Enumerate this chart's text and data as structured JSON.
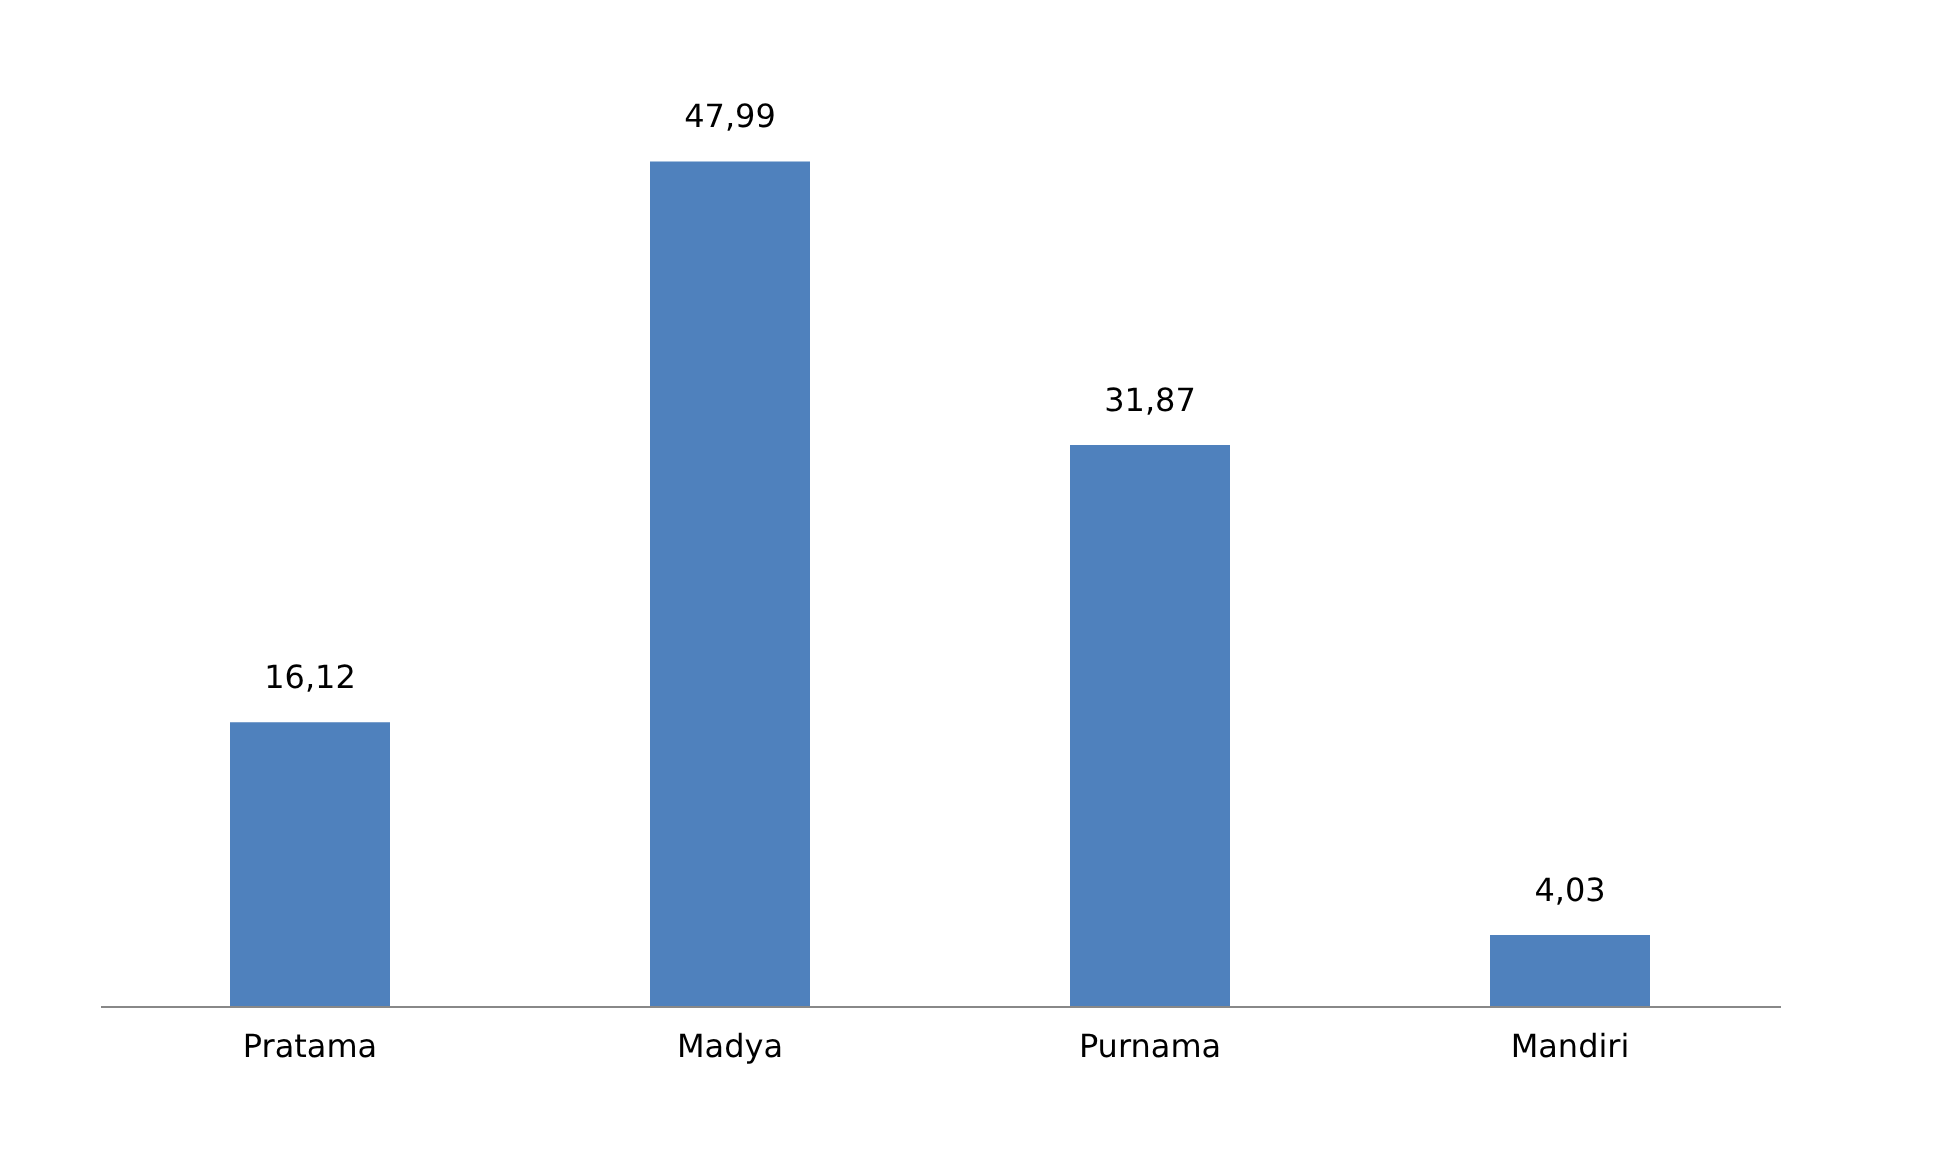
{
  "chart_data": {
    "type": "bar",
    "categories": [
      "Pratama",
      "Madya",
      "Purnama",
      "Mandiri"
    ],
    "values": [
      16.12,
      47.99,
      31.87,
      4.03
    ],
    "value_labels": [
      "16,12",
      "47,99",
      "31,87",
      "4,03"
    ],
    "color": "#4f81bd",
    "tick_labels": "x",
    "grid": false
  }
}
